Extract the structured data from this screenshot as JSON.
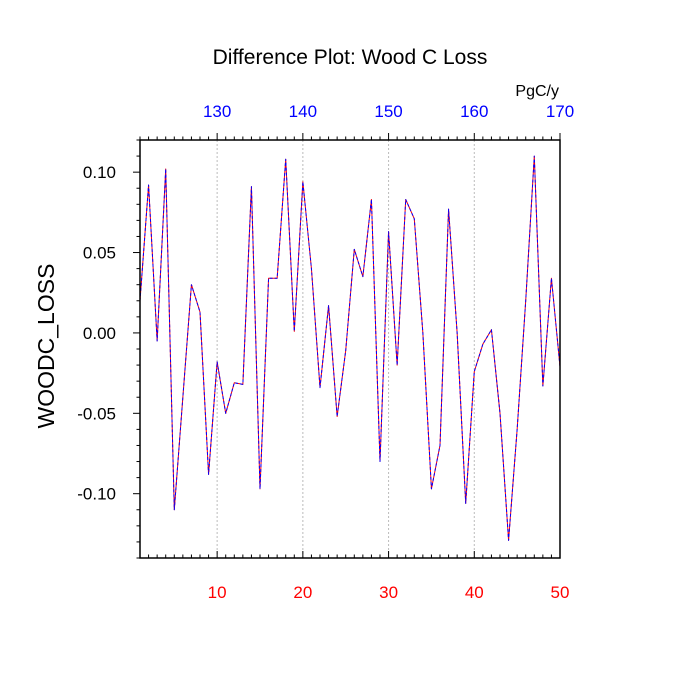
{
  "chart_data": {
    "type": "line",
    "title": "Difference Plot: Wood C Loss",
    "ylabel": "WOODC_LOSS",
    "top_axis_units": "PgC/y",
    "xlim": [
      1,
      50
    ],
    "ylim": [
      -0.14,
      0.12
    ],
    "top_xlim": [
      121,
      170
    ],
    "bottom_ticks": [
      "10",
      "20",
      "30",
      "40",
      "50"
    ],
    "bottom_tick_values": [
      10,
      20,
      30,
      40,
      50
    ],
    "top_ticks": [
      "130",
      "140",
      "150",
      "160",
      "170"
    ],
    "top_tick_values": [
      130,
      140,
      150,
      160,
      170
    ],
    "y_ticks": [
      "0.10",
      "0.05",
      "0.00",
      "-0.05",
      "-0.10"
    ],
    "y_tick_values": [
      0.1,
      0.05,
      0.0,
      -0.05,
      -0.1
    ],
    "grid": "vertical dotted at major x ticks",
    "colors": {
      "bottom_tick_labels": "#ff0000",
      "top_tick_labels": "#0000ff",
      "series_a": "#ff0000",
      "series_b": "#0000ff"
    },
    "x": [
      1,
      2,
      3,
      4,
      5,
      6,
      7,
      8,
      9,
      10,
      11,
      12,
      13,
      14,
      15,
      16,
      17,
      18,
      19,
      20,
      21,
      22,
      23,
      24,
      25,
      26,
      27,
      28,
      29,
      30,
      31,
      32,
      33,
      34,
      35,
      36,
      37,
      38,
      39,
      40,
      41,
      42,
      43,
      44,
      45,
      46,
      47,
      48,
      49,
      50
    ],
    "series": [
      {
        "values": [
          0.02,
          0.092,
          -0.005,
          0.102,
          -0.11,
          -0.04,
          0.03,
          0.013,
          -0.088,
          -0.018,
          -0.05,
          -0.031,
          -0.032,
          0.091,
          -0.097,
          0.034,
          0.034,
          0.108,
          0.001,
          0.094,
          0.04,
          -0.034,
          0.017,
          -0.052,
          -0.011,
          0.052,
          0.035,
          0.083,
          -0.08,
          0.063,
          -0.02,
          0.083,
          0.071,
          0.0,
          -0.097,
          -0.07,
          0.077,
          0.0,
          -0.106,
          -0.024,
          -0.007,
          0.002,
          -0.05,
          -0.129,
          -0.06,
          0.02,
          0.11,
          -0.033,
          0.034,
          -0.021
        ]
      },
      {
        "values": [
          0.02,
          0.092,
          -0.005,
          0.102,
          -0.11,
          -0.04,
          0.03,
          0.013,
          -0.088,
          -0.018,
          -0.05,
          -0.031,
          -0.032,
          0.091,
          -0.097,
          0.034,
          0.034,
          0.108,
          0.001,
          0.094,
          0.04,
          -0.034,
          0.017,
          -0.052,
          -0.011,
          0.052,
          0.035,
          0.083,
          -0.08,
          0.063,
          -0.02,
          0.083,
          0.071,
          0.0,
          -0.097,
          -0.07,
          0.077,
          0.0,
          -0.106,
          -0.024,
          -0.007,
          0.002,
          -0.05,
          -0.129,
          -0.06,
          0.02,
          0.11,
          -0.033,
          0.034,
          -0.021
        ]
      }
    ]
  }
}
